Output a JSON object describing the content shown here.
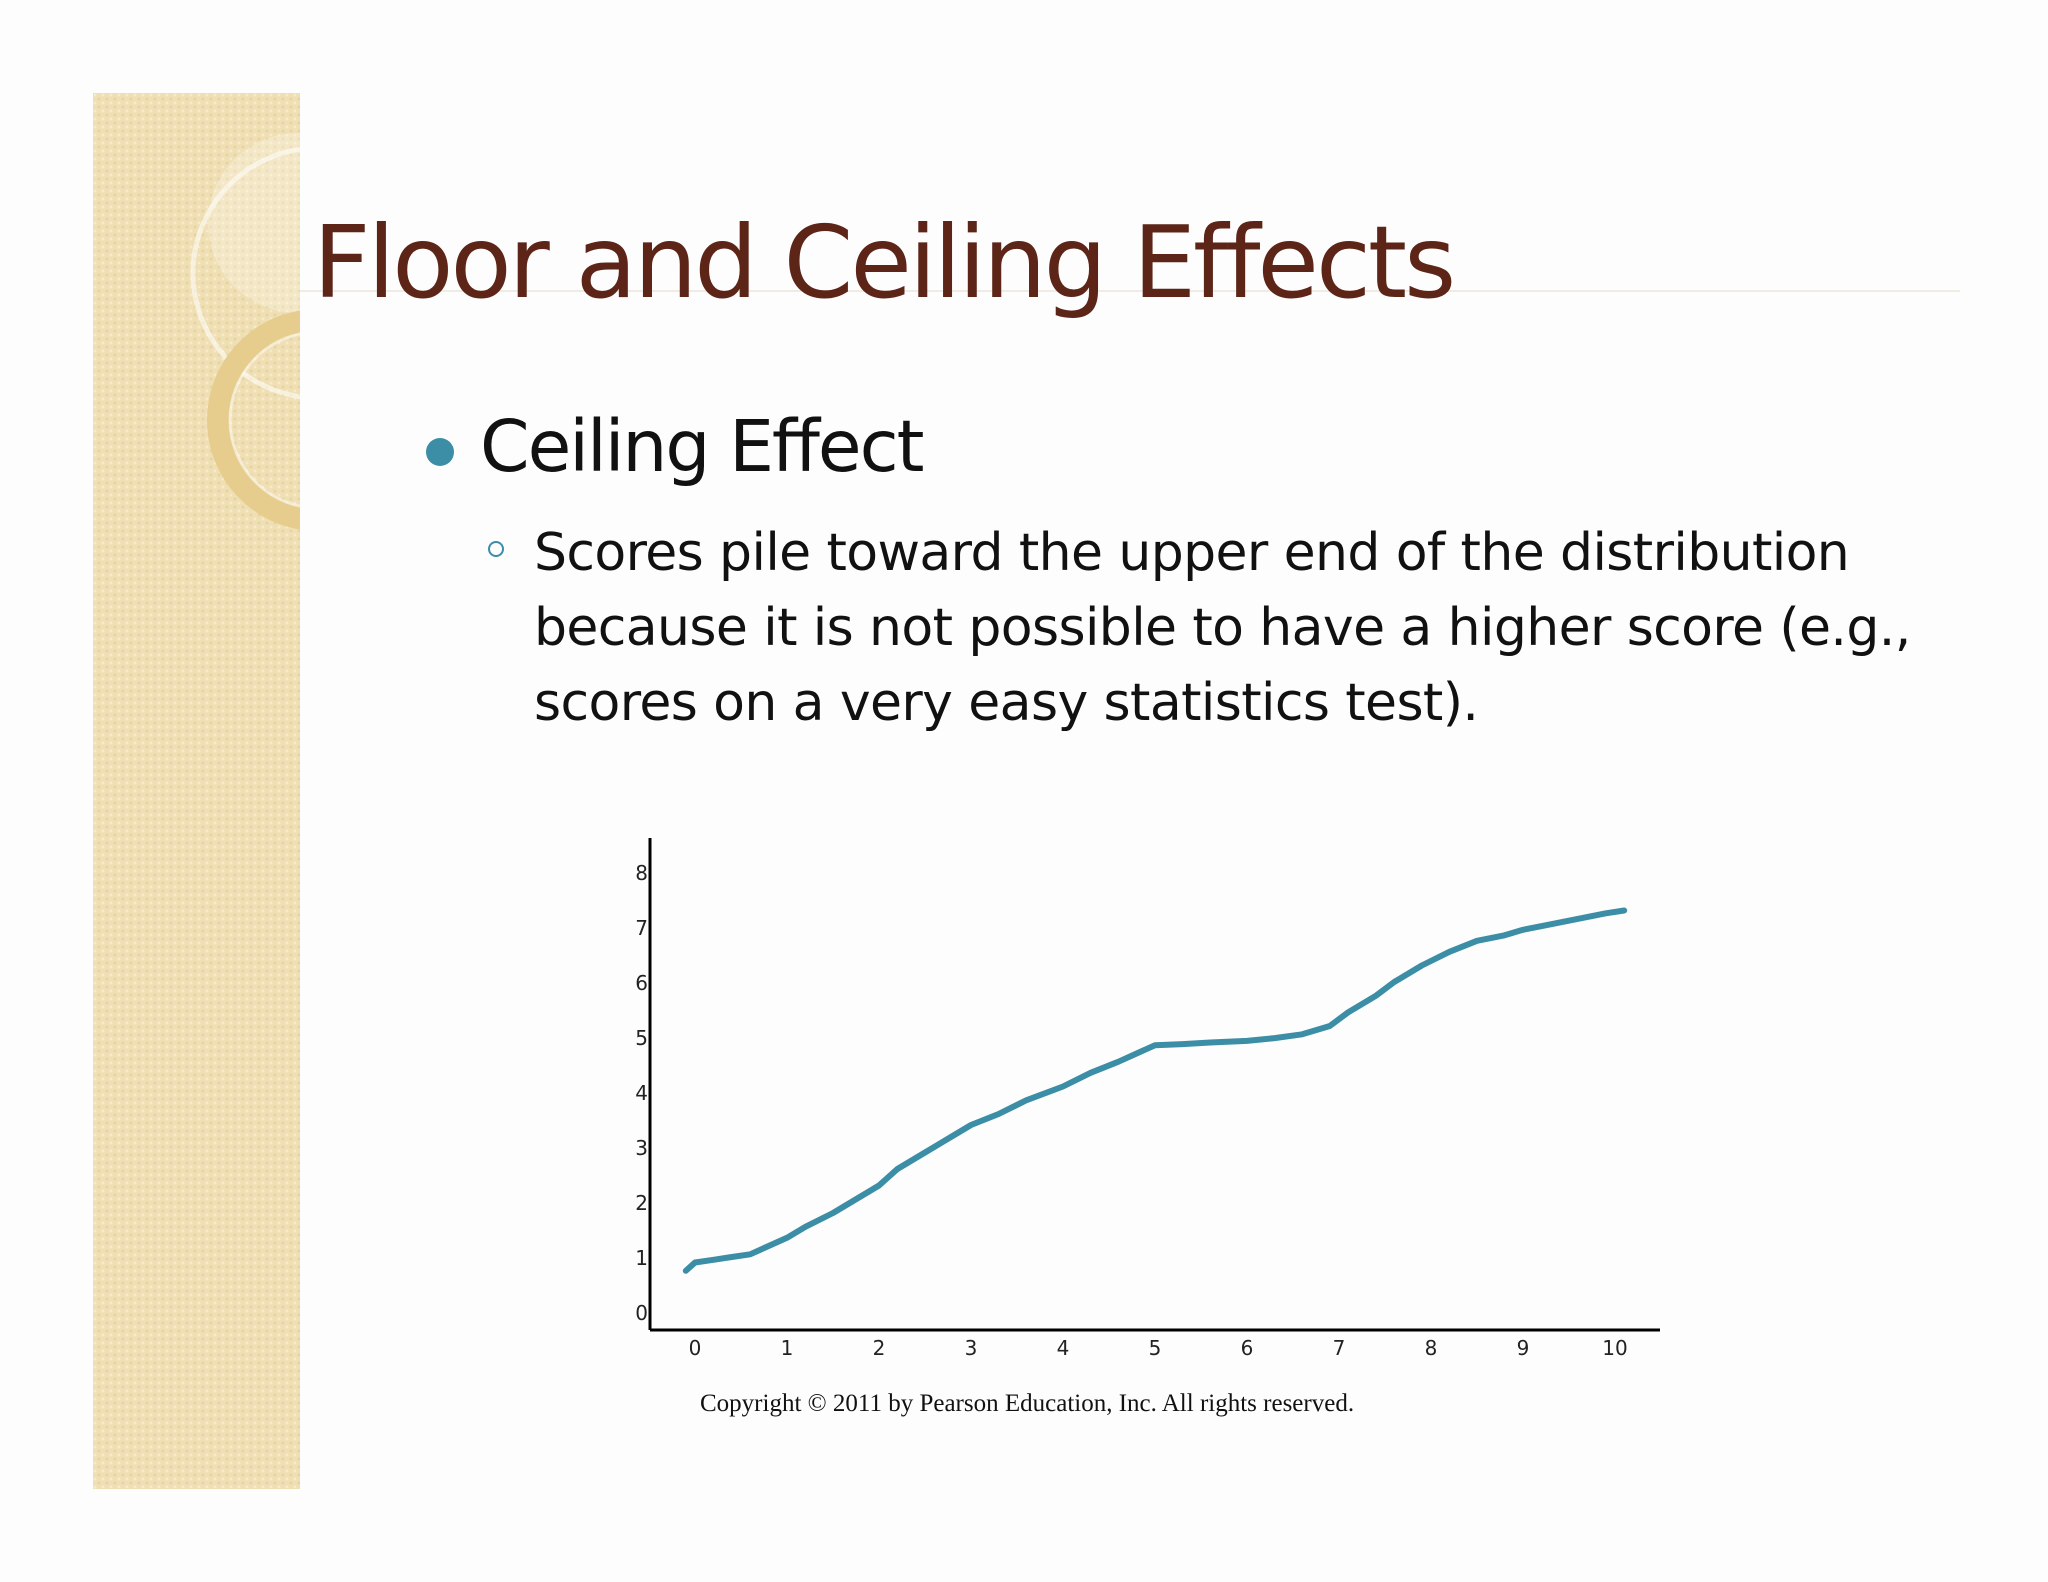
{
  "slide": {
    "title": "Floor and Ceiling Effects",
    "bullets": [
      {
        "label": "Ceiling Effect",
        "subpoints": [
          "Scores pile toward the upper end of the distribution because it is not possible to have a higher score (e.g., scores on a very easy statistics test)."
        ]
      }
    ],
    "copyright": "Copyright © 2011 by Pearson Education, Inc. All rights reserved."
  },
  "colors": {
    "title": "#5c2517",
    "accent": "#3b8ea5",
    "side_band": "#efdfb3"
  },
  "chart_data": {
    "type": "line",
    "x_ticks": [
      "0",
      "1",
      "2",
      "3",
      "4",
      "5",
      "6",
      "7",
      "8",
      "9",
      "10"
    ],
    "y_ticks": [
      "0",
      "1",
      "2",
      "3",
      "4",
      "5",
      "6",
      "7",
      "8"
    ],
    "xlim": [
      -0.1,
      10.5
    ],
    "ylim": [
      0,
      8.8
    ],
    "grid": false,
    "series": [
      {
        "color": "#3b8ea5",
        "x": [
          -0.1,
          0.0,
          0.2,
          0.4,
          0.6,
          0.8,
          1.0,
          1.2,
          1.5,
          1.8,
          2.0,
          2.2,
          2.5,
          2.8,
          3.0,
          3.3,
          3.6,
          4.0,
          4.3,
          4.6,
          4.8,
          5.0,
          5.3,
          5.6,
          6.0,
          6.3,
          6.6,
          6.9,
          7.1,
          7.4,
          7.6,
          7.9,
          8.2,
          8.5,
          8.8,
          9.0,
          9.3,
          9.6,
          9.9,
          10.1
        ],
        "y": [
          0.75,
          0.9,
          0.95,
          1.0,
          1.05,
          1.2,
          1.35,
          1.55,
          1.8,
          2.1,
          2.3,
          2.6,
          2.9,
          3.2,
          3.4,
          3.6,
          3.85,
          4.1,
          4.35,
          4.55,
          4.7,
          4.85,
          4.87,
          4.9,
          4.93,
          4.98,
          5.05,
          5.2,
          5.45,
          5.75,
          6.0,
          6.3,
          6.55,
          6.75,
          6.85,
          6.95,
          7.05,
          7.15,
          7.25,
          7.3
        ]
      }
    ]
  }
}
